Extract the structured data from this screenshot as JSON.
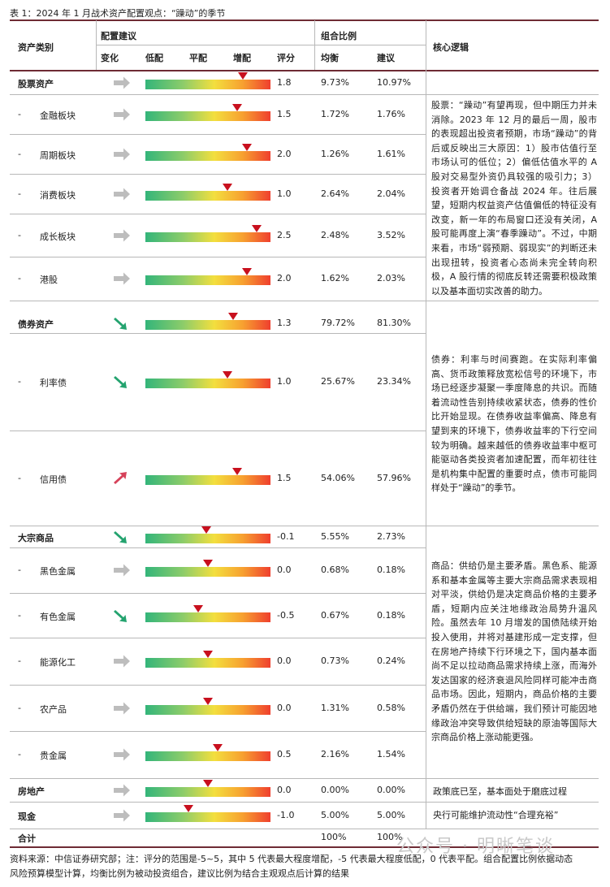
{
  "title": "表 1：2024 年 1 月战术资产配置观点：“躁动”的季节",
  "headers": {
    "asset_class": "资产类别",
    "config": "配置建议",
    "change": "变化",
    "underweight": "低配",
    "neutral": "平配",
    "overweight": "增配",
    "score": "评分",
    "ratio": "组合比例",
    "balanced": "均衡",
    "suggested": "建议",
    "logic": "核心逻辑"
  },
  "rows": [
    {
      "name": "股票资产",
      "dash": "",
      "main": true,
      "arrow": "flat",
      "score": 1.8,
      "score_text": "1.8",
      "balanced": "9.73%",
      "suggested": "10.97%"
    },
    {
      "name": "金融板块",
      "dash": "-",
      "main": false,
      "arrow": "flat",
      "score": 1.5,
      "score_text": "1.5",
      "balanced": "1.72%",
      "suggested": "1.76%"
    },
    {
      "name": "周期板块",
      "dash": "-",
      "main": false,
      "arrow": "flat",
      "score": 2.0,
      "score_text": "2.0",
      "balanced": "1.26%",
      "suggested": "1.61%"
    },
    {
      "name": "消费板块",
      "dash": "-",
      "main": false,
      "arrow": "flat",
      "score": 1.0,
      "score_text": "1.0",
      "balanced": "2.64%",
      "suggested": "2.04%"
    },
    {
      "name": "成长板块",
      "dash": "-",
      "main": false,
      "arrow": "flat",
      "score": 2.5,
      "score_text": "2.5",
      "balanced": "2.48%",
      "suggested": "3.52%"
    },
    {
      "name": "港股",
      "dash": "-",
      "main": false,
      "arrow": "flat",
      "score": 2.0,
      "score_text": "2.0",
      "balanced": "1.62%",
      "suggested": "2.03%"
    },
    {
      "name": "债券资产",
      "dash": "",
      "main": true,
      "arrow": "down",
      "score": 1.3,
      "score_text": "1.3",
      "balanced": "79.72%",
      "suggested": "81.30%"
    },
    {
      "name": "利率债",
      "dash": "-",
      "main": false,
      "arrow": "down",
      "score": 1.0,
      "score_text": "1.0",
      "balanced": "25.67%",
      "suggested": "23.34%"
    },
    {
      "name": "信用债",
      "dash": "-",
      "main": false,
      "arrow": "up",
      "score": 1.5,
      "score_text": "1.5",
      "balanced": "54.06%",
      "suggested": "57.96%"
    },
    {
      "name": "大宗商品",
      "dash": "",
      "main": true,
      "arrow": "down",
      "score": -0.1,
      "score_text": "-0.1",
      "balanced": "5.55%",
      "suggested": "2.73%"
    },
    {
      "name": "黑色金属",
      "dash": "-",
      "main": false,
      "arrow": "flat",
      "score": 0.0,
      "score_text": "0.0",
      "balanced": "0.68%",
      "suggested": "0.18%"
    },
    {
      "name": "有色金属",
      "dash": "-",
      "main": false,
      "arrow": "down",
      "score": -0.5,
      "score_text": "-0.5",
      "balanced": "0.67%",
      "suggested": "0.18%"
    },
    {
      "name": "能源化工",
      "dash": "-",
      "main": false,
      "arrow": "flat",
      "score": 0.0,
      "score_text": "0.0",
      "balanced": "0.73%",
      "suggested": "0.24%"
    },
    {
      "name": "农产品",
      "dash": "-",
      "main": false,
      "arrow": "flat",
      "score": 0.0,
      "score_text": "0.0",
      "balanced": "1.31%",
      "suggested": "0.58%"
    },
    {
      "name": "贵金属",
      "dash": "-",
      "main": false,
      "arrow": "flat",
      "score": 0.5,
      "score_text": "0.5",
      "balanced": "2.16%",
      "suggested": "1.54%"
    },
    {
      "name": "房地产",
      "dash": "",
      "main": true,
      "arrow": "flat",
      "score": 0.0,
      "score_text": "0.0",
      "balanced": "0.00%",
      "suggested": "0.00%"
    },
    {
      "name": "现金",
      "dash": "",
      "main": true,
      "arrow": "flat",
      "score": -1.0,
      "score_text": "-1.0",
      "balanced": "5.00%",
      "suggested": "5.00%"
    }
  ],
  "total": {
    "label": "合计",
    "balanced": "100%",
    "suggested": "100%"
  },
  "logic": {
    "equity": "股票：“躁动”有望再现，但中期压力并未消除。2023 年 12 月的最后一周，股市的表现超出投资者预期，市场“躁动”的背后或反映出三大原因：1）股市估值行至市场认可的低位；2）偏低估值水平的 A 股对交易型外资仍具较强的吸引力；3）投资者开始调仓备战 2024 年。往后展望，短期内权益资产估值偏低的特征没有改变，新一年的布局窗口还没有关闭，A 股可能再度上演“春季躁动”。不过，中期来看，市场“弱预期、弱现实”的判断还未出现扭转，投资者心态尚未完全转向积极，A 股行情的彻底反转还需要积极政策以及基本面切实改善的助力。",
    "bond": "债券：利率与时间赛跑。在实际利率偏高、货币政策释放宽松信号的环境下，市场已经逐步凝聚一季度降息的共识。而随着流动性告别持续收紧状态，债券的性价比开始显现。在债券收益率偏高、降息有望到来的环境下，债券收益率的下行空间较为明确。越来越低的债券收益率中枢可能驱动各类投资者加速配置，而年初往往是机构集中配置的重要时点，债市可能同样处于“躁动”的季节。",
    "commodity": "商品：供给仍是主要矛盾。黑色系、能源系和基本金属等主要大宗商品需求表现相对平淡，供给仍是决定商品价格的主要矛盾，短期内应关注地缘政治局势升温风险。虽然去年 10 月增发的国债陆续开始投入使用，并将对基建形成一定支撑，但在房地产持续下行环境之下，国内基本面尚不足以拉动商品需求持续上涨，而海外发达国家的经济衰退风险同样可能冲击商品市场。因此，短期内，商品价格的主要矛盾仍然在于供给端，我们预计可能因地缘政治冲突导致供给短缺的原油等国际大宗商品价格上涨动能更强。",
    "real_estate": "政策底已至，基本面处于磨底过程",
    "cash": "央行可能维护流动性“合理充裕”"
  },
  "footnote": {
    "line1": "资料来源：中信证券研究部；注：评分的范围是-5~5，其中 5 代表最大程度增配，-5 代表最大程度低配，0 代表平配。组合配置比例依据动态",
    "line2": "风险预算模型计算，均衡比例为被动投资组合，建议比例为结合主观观点后计算的结果"
  },
  "watermark": "公众号 · 明晰笔谈",
  "colors": {
    "header_line": "#6e2b34",
    "marker": "#c8101e",
    "arrow_gray": "#bdbdbd",
    "arrow_green": "#24a36f",
    "arrow_red": "#d6425a"
  }
}
